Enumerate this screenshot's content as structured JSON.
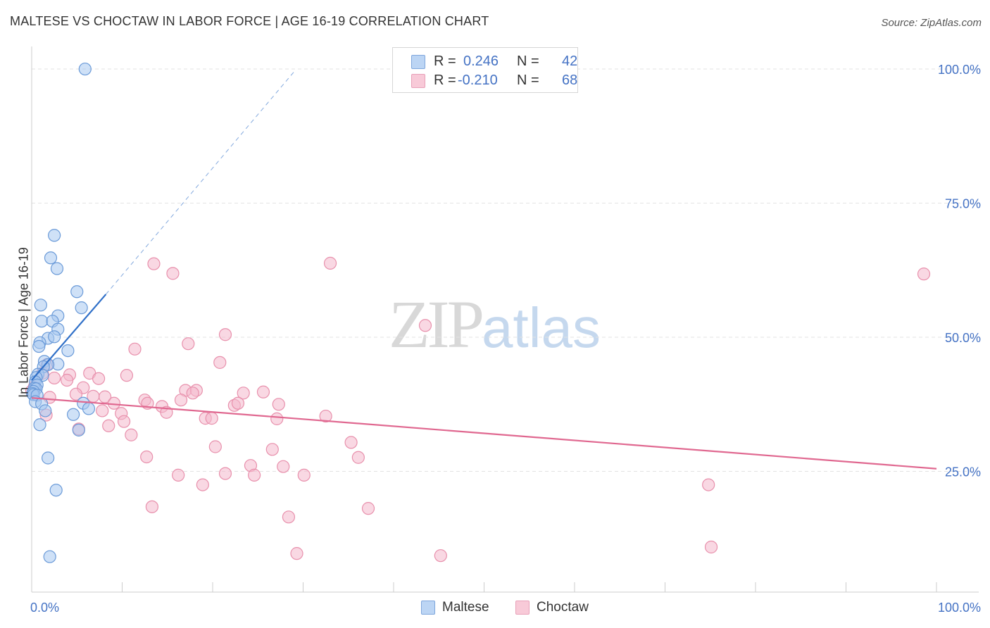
{
  "header": {
    "title": "MALTESE VS CHOCTAW IN LABOR FORCE | AGE 16-19 CORRELATION CHART",
    "source": "Source: ZipAtlas.com"
  },
  "legend_top": {
    "rows": [
      {
        "r_label": "R =",
        "r_value": "0.246",
        "n_label": "N =",
        "n_value": "42"
      },
      {
        "r_label": "R =",
        "r_value": "-0.210",
        "n_label": "N =",
        "n_value": "68"
      }
    ]
  },
  "legend_bottom": {
    "items": [
      "Maltese",
      "Choctaw"
    ]
  },
  "axes": {
    "ylabel": "In Labor Force | Age 16-19",
    "x_min_label": "0.0%",
    "x_max_label": "100.0%",
    "y_ticks": [
      "100.0%",
      "75.0%",
      "50.0%",
      "25.0%"
    ]
  },
  "watermark": {
    "zip": "ZIP",
    "atlas": "atlas"
  },
  "colors": {
    "maltese_fill": "#a8c8f0",
    "maltese_stroke": "#6a9ad8",
    "maltese_line": "#3070c8",
    "choctaw_fill": "#f4b8cc",
    "choctaw_stroke": "#e890ac",
    "choctaw_line": "#e06890",
    "axis_label": "#4472c4"
  },
  "chart_data": {
    "type": "scatter",
    "title": "MALTESE VS CHOCTAW IN LABOR FORCE | AGE 16-19 CORRELATION CHART",
    "xlabel": "",
    "ylabel": "In Labor Force | Age 16-19",
    "xlim": [
      0,
      100
    ],
    "ylim": [
      0,
      100
    ],
    "series": [
      {
        "name": "Maltese",
        "R": 0.246,
        "N": 42,
        "trend": {
          "x0": 0,
          "y0": 39.5,
          "x1": 8.2,
          "y1": 55.5,
          "dashed_to_x": 29,
          "dashed_to_y": 97
        },
        "points": [
          [
            5.9,
            97.5
          ],
          [
            2.5,
            66.5
          ],
          [
            2.1,
            62.3
          ],
          [
            2.8,
            60.3
          ],
          [
            5.0,
            56.0
          ],
          [
            1.0,
            53.5
          ],
          [
            5.5,
            53.0
          ],
          [
            2.9,
            51.5
          ],
          [
            1.1,
            50.5
          ],
          [
            2.3,
            50.5
          ],
          [
            2.9,
            49.0
          ],
          [
            1.8,
            47.3
          ],
          [
            2.5,
            47.6
          ],
          [
            0.9,
            46.5
          ],
          [
            0.8,
            45.8
          ],
          [
            4.0,
            45.0
          ],
          [
            1.4,
            43.0
          ],
          [
            2.9,
            42.5
          ],
          [
            1.8,
            42.4
          ],
          [
            1.3,
            42.0
          ],
          [
            0.7,
            40.6
          ],
          [
            1.2,
            40.4
          ],
          [
            0.5,
            40.0
          ],
          [
            0.4,
            39.2
          ],
          [
            0.6,
            38.6
          ],
          [
            0.3,
            38.0
          ],
          [
            0.5,
            37.9
          ],
          [
            0.2,
            37.4
          ],
          [
            0.1,
            37.0
          ],
          [
            0.2,
            36.8
          ],
          [
            0.6,
            36.7
          ],
          [
            0.4,
            35.5
          ],
          [
            1.1,
            35.1
          ],
          [
            5.7,
            35.2
          ],
          [
            1.5,
            33.8
          ],
          [
            6.3,
            34.2
          ],
          [
            4.6,
            33.1
          ],
          [
            0.9,
            31.2
          ],
          [
            5.2,
            30.2
          ],
          [
            1.8,
            25.0
          ],
          [
            2.7,
            19.0
          ],
          [
            2.0,
            6.6
          ]
        ]
      },
      {
        "name": "Choctaw",
        "R": -0.21,
        "N": 68,
        "trend": {
          "x0": 0,
          "y0": 36.2,
          "x1": 100,
          "y1": 23.0
        },
        "points": [
          [
            13.5,
            61.2
          ],
          [
            33.0,
            61.3
          ],
          [
            15.6,
            59.4
          ],
          [
            98.6,
            59.3
          ],
          [
            43.5,
            49.7
          ],
          [
            17.3,
            46.3
          ],
          [
            21.4,
            48.0
          ],
          [
            11.4,
            45.3
          ],
          [
            20.8,
            42.8
          ],
          [
            1.7,
            42.4
          ],
          [
            1.2,
            40.8
          ],
          [
            6.4,
            40.8
          ],
          [
            10.5,
            40.4
          ],
          [
            2.5,
            39.9
          ],
          [
            4.2,
            40.5
          ],
          [
            7.4,
            39.8
          ],
          [
            3.9,
            39.5
          ],
          [
            0.3,
            38.3
          ],
          [
            5.7,
            38.1
          ],
          [
            17.0,
            37.6
          ],
          [
            18.2,
            37.6
          ],
          [
            17.8,
            37.1
          ],
          [
            23.4,
            37.1
          ],
          [
            25.6,
            37.3
          ],
          [
            4.9,
            36.9
          ],
          [
            6.8,
            36.5
          ],
          [
            8.1,
            36.4
          ],
          [
            2.0,
            36.3
          ],
          [
            12.5,
            35.8
          ],
          [
            16.5,
            35.8
          ],
          [
            9.1,
            35.2
          ],
          [
            12.8,
            35.2
          ],
          [
            14.4,
            34.6
          ],
          [
            22.4,
            34.8
          ],
          [
            22.8,
            35.2
          ],
          [
            27.3,
            35.0
          ],
          [
            7.8,
            33.8
          ],
          [
            9.9,
            33.3
          ],
          [
            14.9,
            33.5
          ],
          [
            1.6,
            33.0
          ],
          [
            19.2,
            32.4
          ],
          [
            19.9,
            32.4
          ],
          [
            27.1,
            32.3
          ],
          [
            32.5,
            32.8
          ],
          [
            10.2,
            31.8
          ],
          [
            8.5,
            31.0
          ],
          [
            11.0,
            29.3
          ],
          [
            5.2,
            30.4
          ],
          [
            35.3,
            27.9
          ],
          [
            20.3,
            27.1
          ],
          [
            26.6,
            26.6
          ],
          [
            36.1,
            25.1
          ],
          [
            12.7,
            25.2
          ],
          [
            24.2,
            23.6
          ],
          [
            27.8,
            23.4
          ],
          [
            16.2,
            21.8
          ],
          [
            21.4,
            22.1
          ],
          [
            24.6,
            21.8
          ],
          [
            30.1,
            21.8
          ],
          [
            74.8,
            20.0
          ],
          [
            18.9,
            20.0
          ],
          [
            13.3,
            15.9
          ],
          [
            37.2,
            15.6
          ],
          [
            28.4,
            14.0
          ],
          [
            75.1,
            8.4
          ],
          [
            29.3,
            7.2
          ],
          [
            45.2,
            6.8
          ],
          [
            0.0,
            37.5
          ]
        ]
      }
    ]
  }
}
